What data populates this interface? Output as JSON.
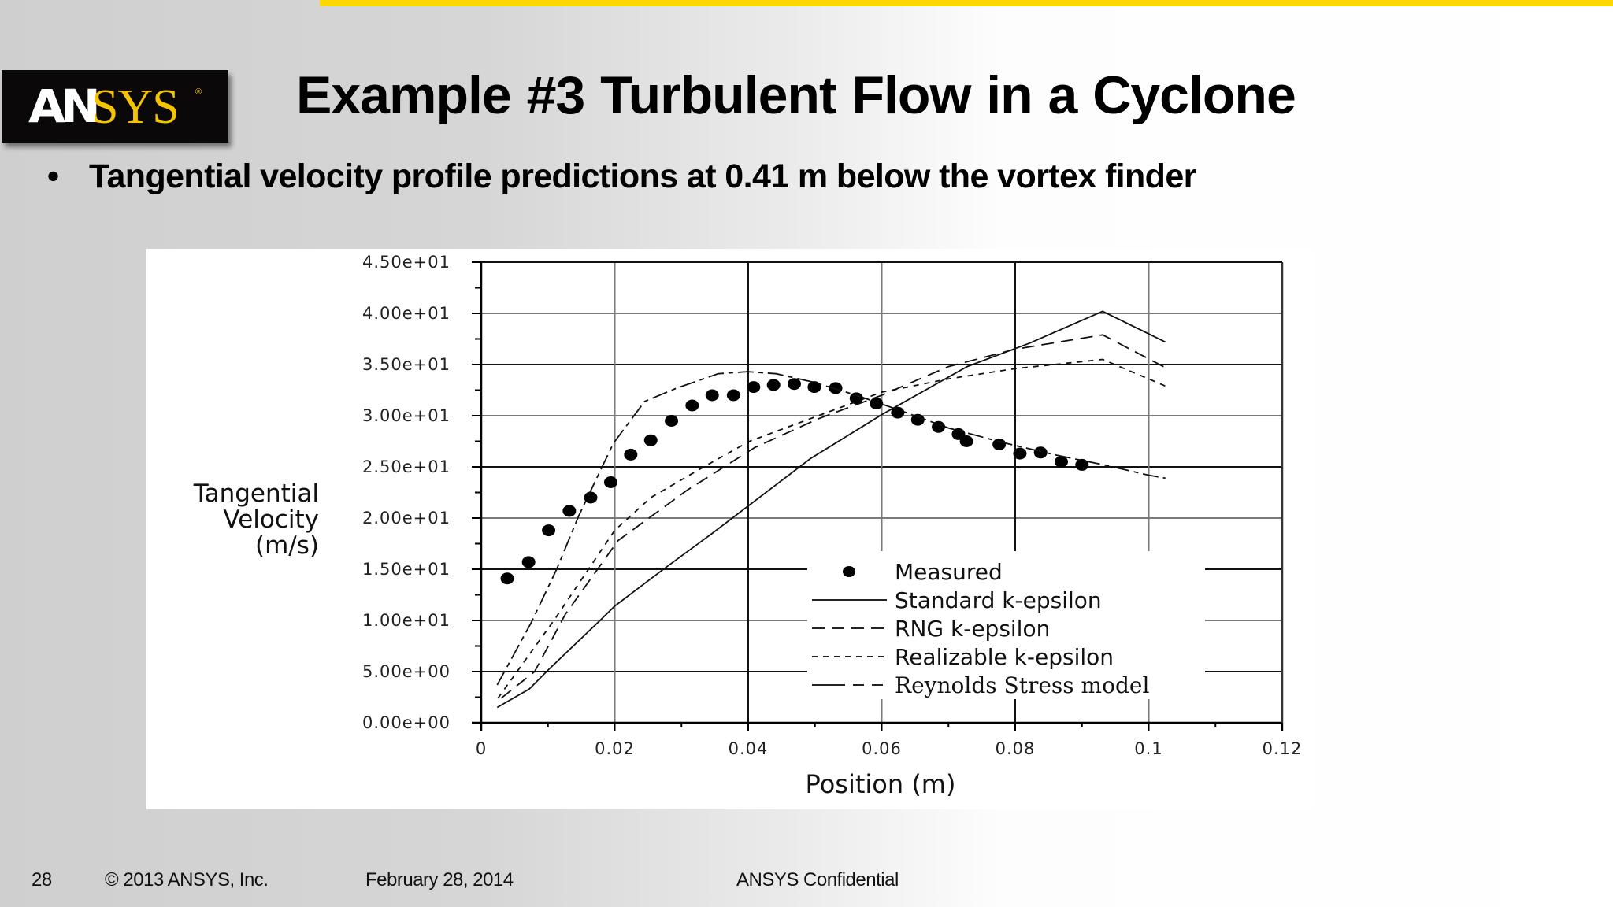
{
  "header": {
    "logo": {
      "part1": "AN",
      "part2": "SYS",
      "registered": "®"
    },
    "title": "Example #3  Turbulent Flow in a Cyclone",
    "bullet_symbol": "•",
    "bullet": "Tangential velocity profile predictions at 0.41 m below the vortex finder",
    "accent_color": "#ffd700"
  },
  "footer": {
    "page_number": "28",
    "copyright": "© 2013 ANSYS, Inc.",
    "date": "February 28, 2014",
    "confidentiality": "ANSYS Confidential"
  },
  "chart_data": {
    "type": "line",
    "title": "",
    "xlabel": "Position (m)",
    "ylabel": "Tangential Velocity (m/s)",
    "ylabel_lines": [
      "Tangential",
      "Velocity",
      "(m/s)"
    ],
    "xlim": [
      0,
      0.12
    ],
    "ylim": [
      0,
      45
    ],
    "x_ticks": [
      0,
      0.02,
      0.04,
      0.06,
      0.08,
      0.1,
      0.12
    ],
    "x_tick_labels": [
      "0",
      "0.02",
      "0.04",
      "0.06",
      "0.08",
      "0.1",
      "0.12"
    ],
    "y_ticks": [
      0,
      5,
      10,
      15,
      20,
      25,
      30,
      35,
      40,
      45
    ],
    "y_tick_labels": [
      "0.00e+00",
      "5.00e+00",
      "1.00e+01",
      "1.50e+01",
      "2.00e+01",
      "2.50e+01",
      "3.00e+01",
      "3.50e+01",
      "4.00e+01",
      "4.50e+01"
    ],
    "grid": true,
    "legend_position": "lower right (inside plot)",
    "series": [
      {
        "name": "Measured",
        "style": "markers",
        "x": [
          0.0039,
          0.0071,
          0.0101,
          0.0132,
          0.0164,
          0.0194,
          0.0224,
          0.0254,
          0.0285,
          0.0316,
          0.0346,
          0.0378,
          0.0408,
          0.0438,
          0.0469,
          0.0499,
          0.0531,
          0.0562,
          0.0592,
          0.0624,
          0.0654,
          0.0685,
          0.0715,
          0.0727,
          0.0776,
          0.0807,
          0.0838,
          0.0869,
          0.09
        ],
        "y": [
          14.1,
          15.7,
          18.8,
          20.7,
          22.0,
          23.5,
          26.2,
          27.6,
          29.5,
          31.0,
          32.0,
          32.0,
          32.8,
          33.0,
          33.1,
          32.8,
          32.7,
          31.7,
          31.2,
          30.3,
          29.6,
          28.9,
          28.2,
          27.5,
          27.2,
          26.3,
          26.4,
          25.5,
          25.2
        ]
      },
      {
        "name": "Standard k-epsilon",
        "style": "solid",
        "x": [
          0.0024,
          0.0072,
          0.0101,
          0.0178,
          0.02,
          0.0275,
          0.0346,
          0.0493,
          0.06,
          0.0728,
          0.0822,
          0.0931,
          0.1025
        ],
        "y": [
          1.5,
          3.3,
          5.2,
          10.0,
          11.4,
          15.1,
          18.5,
          25.8,
          30.1,
          34.8,
          37.1,
          40.2,
          37.2
        ]
      },
      {
        "name": "RNG k-epsilon",
        "style": "long-dash",
        "x": [
          0.003,
          0.008,
          0.0126,
          0.0205,
          0.0308,
          0.041,
          0.0505,
          0.06,
          0.07,
          0.08,
          0.0931,
          0.1025
        ],
        "y": [
          2.4,
          5.0,
          10.6,
          17.8,
          22.7,
          26.9,
          29.7,
          32.0,
          34.8,
          36.5,
          37.9,
          34.7
        ]
      },
      {
        "name": "Realizable k-epsilon",
        "style": "short-dash",
        "x": [
          0.0025,
          0.011,
          0.02,
          0.0254,
          0.0336,
          0.0402,
          0.0505,
          0.06,
          0.07,
          0.08,
          0.0931,
          0.1025
        ],
        "y": [
          2.4,
          10.1,
          18.8,
          22.0,
          25.1,
          27.5,
          30.0,
          32.3,
          33.6,
          34.6,
          35.5,
          32.9
        ]
      },
      {
        "name": "Reynolds Stress model",
        "style": "dash-dot",
        "x": [
          0.0024,
          0.0075,
          0.0113,
          0.0146,
          0.0198,
          0.0245,
          0.0293,
          0.0355,
          0.0399,
          0.0442,
          0.0496,
          0.0562,
          0.0624,
          0.07,
          0.078,
          0.0858,
          0.094,
          0.0999,
          0.1025
        ],
        "y": [
          3.7,
          9.8,
          15.0,
          20.2,
          27.3,
          31.4,
          32.7,
          34.1,
          34.3,
          34.1,
          33.3,
          32.0,
          30.6,
          28.8,
          27.4,
          26.2,
          25.1,
          24.2,
          23.9
        ]
      }
    ]
  }
}
